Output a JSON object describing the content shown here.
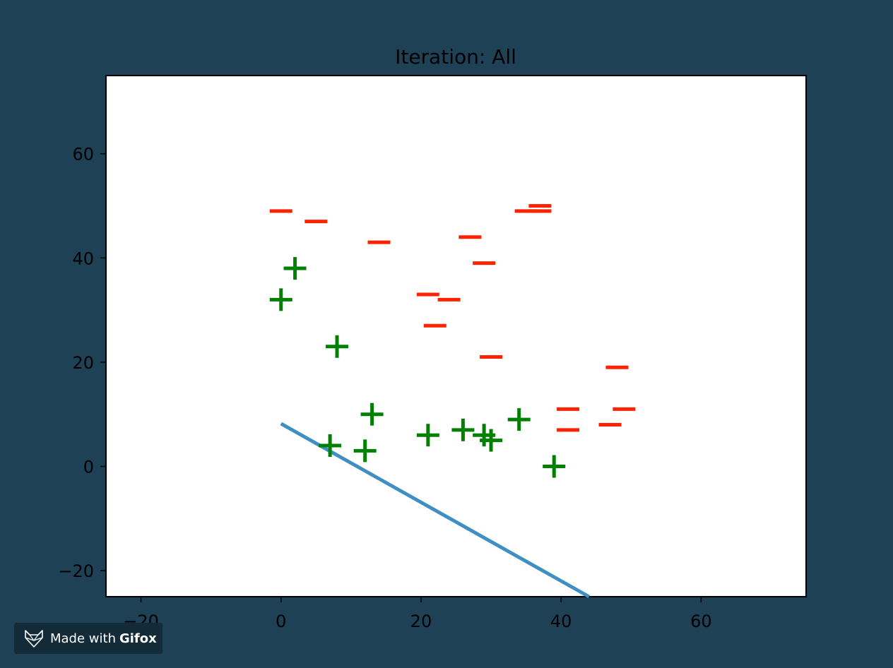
{
  "chart_data": {
    "type": "scatter",
    "title": "Iteration: All",
    "xlabel": "",
    "ylabel": "",
    "xlim": [
      -25,
      75
    ],
    "ylim": [
      -25,
      75
    ],
    "xticks": [
      -20,
      0,
      20,
      40,
      60
    ],
    "yticks": [
      -20,
      0,
      20,
      40,
      60
    ],
    "grid": false,
    "series": [
      {
        "marker": "plus",
        "color": "#008000",
        "points": [
          [
            0,
            32
          ],
          [
            2,
            38
          ],
          [
            8,
            23
          ],
          [
            7,
            4
          ],
          [
            12,
            3
          ],
          [
            13,
            10
          ],
          [
            21,
            6
          ],
          [
            26,
            7
          ],
          [
            29,
            6
          ],
          [
            30,
            5
          ],
          [
            34,
            9
          ],
          [
            39,
            0
          ]
        ]
      },
      {
        "marker": "minus",
        "color": "#ff2200",
        "points": [
          [
            0,
            49
          ],
          [
            5,
            47
          ],
          [
            14,
            43
          ],
          [
            21,
            33
          ],
          [
            22,
            27
          ],
          [
            24,
            32
          ],
          [
            27,
            44
          ],
          [
            29,
            39
          ],
          [
            30,
            21
          ],
          [
            35,
            49
          ],
          [
            37,
            50
          ],
          [
            37,
            49
          ],
          [
            41,
            11
          ],
          [
            41,
            7
          ],
          [
            47,
            8
          ],
          [
            48,
            19
          ],
          [
            49,
            11
          ]
        ]
      }
    ],
    "line": {
      "color": "#3f8fc4",
      "points": [
        [
          0,
          8.2
        ],
        [
          44,
          -25
        ]
      ]
    }
  },
  "badge": {
    "prefix": "Made with",
    "brand": "Gifox",
    "icon": "fox-icon"
  }
}
